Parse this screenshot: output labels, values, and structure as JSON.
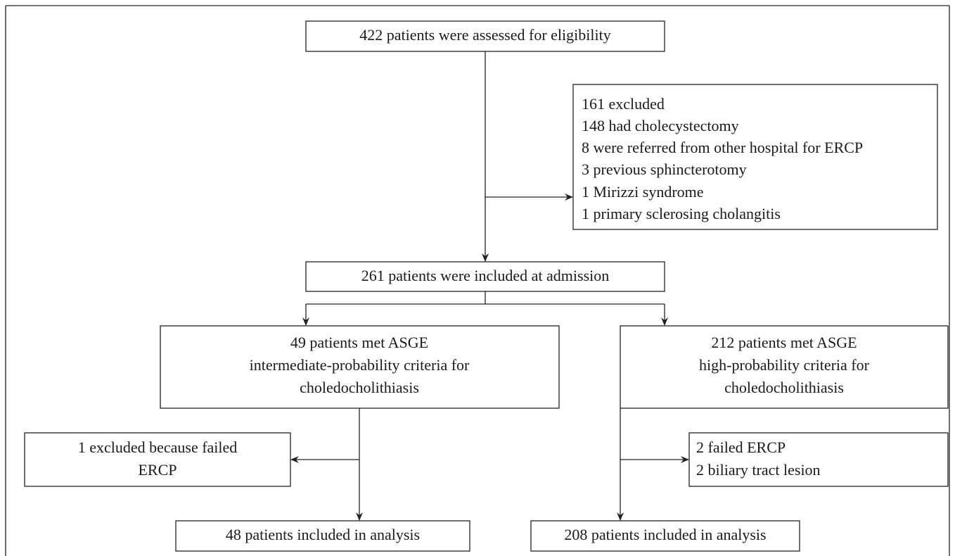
{
  "nodes": [
    {
      "lines": [
        "422 patients were assessed for eligibility"
      ]
    },
    {
      "lines": [
        "161 excluded",
        "148 had cholecystectomy",
        "8 were referred from other hospital for ERCP",
        "3 previous sphincterotomy",
        "1 Mirizzi syndrome",
        "1 primary sclerosing cholangitis"
      ]
    },
    {
      "lines": [
        "261 patients were included at admission"
      ]
    },
    {
      "lines": [
        "49 patients met ASGE",
        "intermediate-probability criteria for",
        "choledocholithiasis"
      ]
    },
    {
      "lines": [
        "212 patients met ASGE",
        "high-probability criteria for",
        "choledocholithiasis"
      ]
    },
    {
      "lines": [
        "1 excluded because failed",
        "ERCP"
      ]
    },
    {
      "lines": [
        "2 failed ERCP",
        "2 biliary tract lesion"
      ]
    },
    {
      "lines": [
        "48 patients included in analysis"
      ]
    },
    {
      "lines": [
        "208 patients included in analysis"
      ]
    }
  ]
}
